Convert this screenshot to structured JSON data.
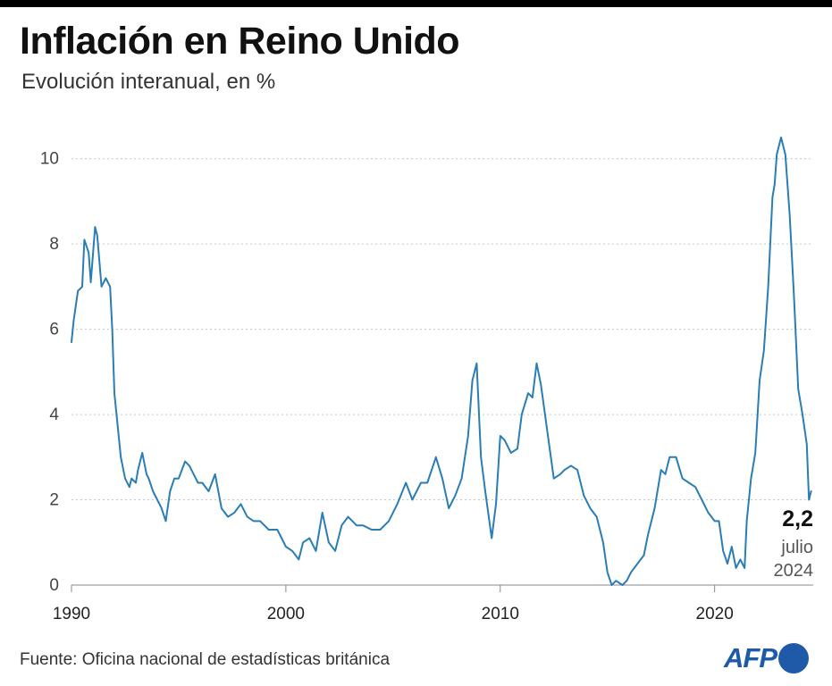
{
  "header": {
    "title": "Inflación en Reino Unido",
    "subtitle": "Evolución interanual, en %"
  },
  "footer": {
    "source": "Fuente: Oficina nacional de estadísticas británica",
    "logo_text": "AFP"
  },
  "colors": {
    "line": "#2a7db5",
    "grid": "#c8c8c8",
    "text": "#333333",
    "logo": "#1e5aa8"
  },
  "chart_data": {
    "type": "line",
    "title": "Inflación en Reino Unido",
    "subtitle": "Evolución interanual, en %",
    "xlim": [
      1990.0,
      2024.6
    ],
    "ylim": [
      0,
      11
    ],
    "x_ticks": [
      1990,
      2000,
      2010,
      2020
    ],
    "x_tick_labels": [
      "1990",
      "2000",
      "2010",
      "2020"
    ],
    "y_ticks": [
      0,
      2,
      4,
      6,
      8,
      10
    ],
    "y_tick_labels": [
      "0",
      "2",
      "4",
      "6",
      "8",
      "10"
    ],
    "grid": "horizontal dotted",
    "annotation": {
      "value_label": "2,2",
      "line1": "julio",
      "line2": "2024",
      "x": 2024.5,
      "y": 2.2
    },
    "series": [
      {
        "x": [
          1990.0,
          1990.1,
          1990.3,
          1990.5,
          1990.6,
          1990.8,
          1990.9,
          1991.1,
          1991.2,
          1991.3,
          1991.4,
          1991.6,
          1991.8,
          1991.9,
          1992.0,
          1992.1,
          1992.3,
          1992.5,
          1992.7,
          1992.8,
          1993.0,
          1993.1,
          1993.3,
          1993.5,
          1993.6,
          1993.8,
          1994.0,
          1994.2,
          1994.4,
          1994.6,
          1994.8,
          1995.0,
          1995.3,
          1995.5,
          1995.7,
          1995.9,
          1996.1,
          1996.4,
          1996.7,
          1997.0,
          1997.3,
          1997.6,
          1997.9,
          1998.2,
          1998.5,
          1998.8,
          1999.2,
          1999.6,
          2000.0,
          2000.3,
          2000.6,
          2000.8,
          2001.1,
          2001.4,
          2001.7,
          2002.0,
          2002.3,
          2002.6,
          2002.9,
          2003.3,
          2003.6,
          2004.0,
          2004.4,
          2004.8,
          2005.2,
          2005.6,
          2005.9,
          2006.3,
          2006.6,
          2007.0,
          2007.3,
          2007.6,
          2007.9,
          2008.2,
          2008.5,
          2008.7,
          2008.9,
          2009.1,
          2009.3,
          2009.6,
          2009.8,
          2010.0,
          2010.2,
          2010.5,
          2010.8,
          2011.0,
          2011.3,
          2011.5,
          2011.7,
          2011.9,
          2012.2,
          2012.5,
          2012.8,
          2013.0,
          2013.3,
          2013.6,
          2013.9,
          2014.2,
          2014.5,
          2014.8,
          2015.0,
          2015.2,
          2015.4,
          2015.7,
          2015.9,
          2016.1,
          2016.4,
          2016.7,
          2016.9,
          2017.2,
          2017.5,
          2017.7,
          2017.9,
          2018.2,
          2018.5,
          2018.8,
          2019.1,
          2019.4,
          2019.7,
          2020.0,
          2020.2,
          2020.4,
          2020.6,
          2020.8,
          2021.0,
          2021.2,
          2021.4,
          2021.5,
          2021.7,
          2021.9,
          2022.1,
          2022.3,
          2022.5,
          2022.7,
          2022.8,
          2022.9,
          2023.1,
          2023.3,
          2023.5,
          2023.7,
          2023.9,
          2024.1,
          2024.3,
          2024.4,
          2024.5
        ],
        "y": [
          5.7,
          6.2,
          6.9,
          7.0,
          8.1,
          7.8,
          7.1,
          8.4,
          8.2,
          7.6,
          7.0,
          7.2,
          7.0,
          6.0,
          4.5,
          4.0,
          3.0,
          2.5,
          2.3,
          2.5,
          2.4,
          2.7,
          3.1,
          2.6,
          2.5,
          2.2,
          2.0,
          1.8,
          1.5,
          2.2,
          2.5,
          2.5,
          2.9,
          2.8,
          2.6,
          2.4,
          2.4,
          2.2,
          2.6,
          1.8,
          1.6,
          1.7,
          1.9,
          1.6,
          1.5,
          1.5,
          1.3,
          1.3,
          0.9,
          0.8,
          0.6,
          1.0,
          1.1,
          0.8,
          1.7,
          1.0,
          0.8,
          1.4,
          1.6,
          1.4,
          1.4,
          1.3,
          1.3,
          1.5,
          1.9,
          2.4,
          2.0,
          2.4,
          2.4,
          3.0,
          2.5,
          1.8,
          2.1,
          2.5,
          3.5,
          4.8,
          5.2,
          3.0,
          2.2,
          1.1,
          1.9,
          3.5,
          3.4,
          3.1,
          3.2,
          4.0,
          4.5,
          4.4,
          5.2,
          4.7,
          3.6,
          2.5,
          2.6,
          2.7,
          2.8,
          2.7,
          2.1,
          1.8,
          1.6,
          1.0,
          0.3,
          0.0,
          0.1,
          0.0,
          0.1,
          0.3,
          0.5,
          0.7,
          1.2,
          1.8,
          2.7,
          2.6,
          3.0,
          3.0,
          2.5,
          2.4,
          2.3,
          2.0,
          1.7,
          1.5,
          1.5,
          0.8,
          0.5,
          0.9,
          0.4,
          0.6,
          0.4,
          1.5,
          2.5,
          3.1,
          4.8,
          5.5,
          7.0,
          9.1,
          9.4,
          10.1,
          10.5,
          10.1,
          8.7,
          6.8,
          4.6,
          4.0,
          3.3,
          2.0,
          2.2
        ]
      }
    ]
  }
}
